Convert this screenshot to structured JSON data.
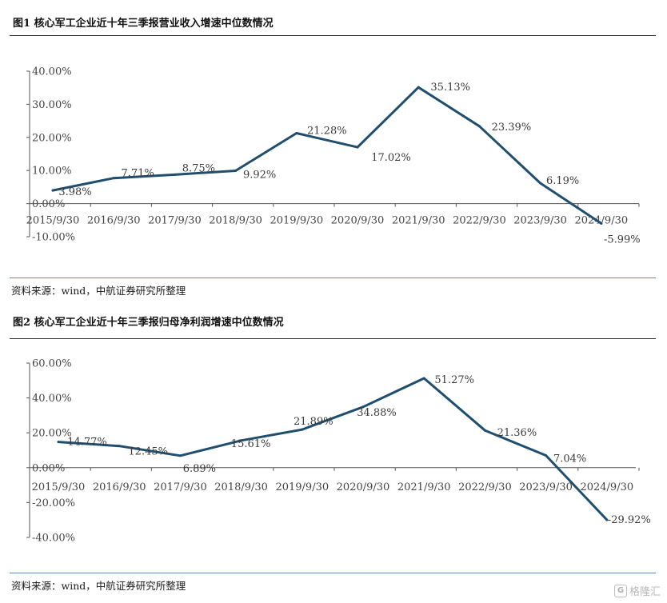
{
  "figures": [
    {
      "title": "图1  核心军工企业近十年三季报营业收入增速中位数情况",
      "source": "资料来源：wind，中航证券研究所整理"
    },
    {
      "title": "图2  核心军工企业近十年三季报归母净利润增速中位数情况",
      "source": "资料来源：wind，中航证券研究所整理"
    }
  ],
  "watermark": {
    "text": "格隆汇"
  },
  "style": {
    "line_color": "#1f4e6e",
    "axis_color": "#555555"
  },
  "chart_data": [
    {
      "type": "line",
      "title": "图1  核心军工企业近十年三季报营业收入增速中位数情况",
      "categories": [
        "2015/9/30",
        "2016/9/30",
        "2017/9/30",
        "2018/9/30",
        "2019/9/30",
        "2020/9/30",
        "2021/9/30",
        "2022/9/30",
        "2023/9/30",
        "2024/9/30"
      ],
      "series": [
        {
          "name": "营业收入增速中位数",
          "values": [
            3.98,
            7.71,
            8.75,
            9.92,
            21.28,
            17.02,
            35.13,
            23.39,
            6.19,
            -5.99
          ]
        }
      ],
      "value_labels": [
        "3.98%",
        "7.71%",
        "8.75%",
        "9.92%",
        "21.28%",
        "17.02%",
        "35.13%",
        "23.39%",
        "6.19%",
        "-5.99%"
      ],
      "yticks": [
        40,
        30,
        20,
        10,
        0,
        -10
      ],
      "ytick_labels": [
        "40.00%",
        "30.00%",
        "20.00%",
        "10.00%",
        "0.00%",
        "-10.00%"
      ],
      "ylim": [
        -10,
        40
      ],
      "legend": "none",
      "grid": false
    },
    {
      "type": "line",
      "title": "图2  核心军工企业近十年三季报归母净利润增速中位数情况",
      "categories": [
        "2015/9/30",
        "2016/9/30",
        "2017/9/30",
        "2018/9/30",
        "2019/9/30",
        "2020/9/30",
        "2021/9/30",
        "2022/9/30",
        "2023/9/30",
        "2024/9/30"
      ],
      "series": [
        {
          "name": "归母净利润增速中位数",
          "values": [
            14.77,
            12.45,
            6.89,
            15.61,
            21.89,
            34.88,
            51.27,
            21.36,
            7.04,
            -29.92
          ]
        }
      ],
      "value_labels": [
        "14.77%",
        "12.45%",
        "6.89%",
        "15.61%",
        "21.89%",
        "34.88%",
        "51.27%",
        "21.36%",
        "7.04%",
        "-29.92%"
      ],
      "yticks": [
        60,
        40,
        20,
        0,
        -20,
        -40
      ],
      "ytick_labels": [
        "60.00%",
        "40.00%",
        "20.00%",
        "0.00%",
        "-20.00%",
        "-40.00%"
      ],
      "ylim": [
        -40,
        60
      ],
      "legend": "none",
      "grid": false
    }
  ]
}
